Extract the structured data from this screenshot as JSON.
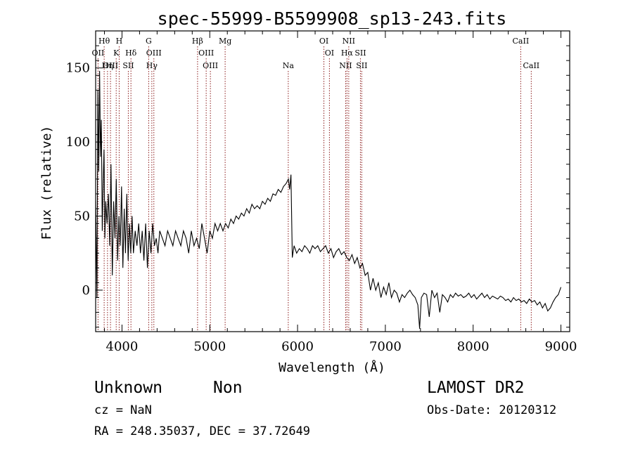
{
  "chart_data": {
    "type": "line",
    "title": "spec-55999-B5599908_sp13-243.fits",
    "xlabel": "Wavelength (Å)",
    "ylabel": "Flux (relative)",
    "xlim": [
      3700,
      9100
    ],
    "ylim": [
      -28,
      175
    ],
    "x_ticks": [
      4000,
      5000,
      6000,
      7000,
      8000,
      9000
    ],
    "y_ticks": [
      0,
      50,
      100,
      150
    ],
    "grid": false,
    "line_color": "#000000",
    "marker_color": "#8b1a1a",
    "series": [
      {
        "x": [
          3700,
          3715,
          3725,
          3735,
          3745,
          3755,
          3765,
          3775,
          3785,
          3795,
          3805,
          3815,
          3830,
          3845,
          3860,
          3875,
          3890,
          3905,
          3920,
          3935,
          3950,
          3965,
          3980,
          3995,
          4010,
          4025,
          4040,
          4055,
          4070,
          4085,
          4100,
          4115,
          4130,
          4150,
          4170,
          4190,
          4210,
          4230,
          4250,
          4270,
          4290,
          4310,
          4330,
          4350,
          4370,
          4390,
          4410,
          4430,
          4460,
          4490,
          4520,
          4550,
          4580,
          4610,
          4640,
          4670,
          4700,
          4730,
          4760,
          4790,
          4820,
          4850,
          4880,
          4910,
          4940,
          4970,
          5000,
          5030,
          5060,
          5090,
          5120,
          5150,
          5180,
          5210,
          5240,
          5270,
          5300,
          5330,
          5360,
          5390,
          5420,
          5450,
          5480,
          5510,
          5540,
          5570,
          5600,
          5630,
          5660,
          5690,
          5720,
          5750,
          5780,
          5810,
          5840,
          5870,
          5895,
          5910,
          5925,
          5940,
          5960,
          5990,
          6020,
          6050,
          6080,
          6110,
          6140,
          6170,
          6200,
          6230,
          6260,
          6290,
          6320,
          6350,
          6380,
          6410,
          6440,
          6470,
          6500,
          6530,
          6560,
          6590,
          6620,
          6650,
          6680,
          6710,
          6740,
          6770,
          6800,
          6830,
          6860,
          6890,
          6920,
          6950,
          6980,
          7010,
          7040,
          7070,
          7100,
          7130,
          7160,
          7190,
          7220,
          7250,
          7280,
          7310,
          7340,
          7370,
          7390,
          7410,
          7440,
          7470,
          7500,
          7530,
          7560,
          7590,
          7620,
          7650,
          7680,
          7710,
          7740,
          7770,
          7800,
          7830,
          7860,
          7890,
          7920,
          7950,
          7980,
          8010,
          8040,
          8070,
          8100,
          8130,
          8160,
          8190,
          8220,
          8250,
          8280,
          8310,
          8340,
          8370,
          8400,
          8430,
          8460,
          8490,
          8520,
          8550,
          8580,
          8610,
          8640,
          8670,
          8700,
          8730,
          8760,
          8790,
          8820,
          8850,
          8880,
          8910,
          8940,
          8970,
          9000
        ],
        "y": [
          60,
          -5,
          135,
          80,
          148,
          90,
          115,
          40,
          70,
          95,
          35,
          60,
          45,
          65,
          30,
          85,
          10,
          60,
          35,
          75,
          20,
          50,
          30,
          70,
          15,
          55,
          25,
          65,
          20,
          45,
          25,
          50,
          25,
          40,
          30,
          45,
          25,
          40,
          20,
          45,
          15,
          40,
          25,
          45,
          30,
          35,
          25,
          40,
          35,
          30,
          40,
          35,
          30,
          40,
          35,
          30,
          40,
          35,
          25,
          40,
          30,
          35,
          28,
          45,
          35,
          25,
          40,
          35,
          45,
          40,
          45,
          40,
          45,
          42,
          48,
          45,
          50,
          48,
          52,
          50,
          55,
          52,
          58,
          55,
          57,
          55,
          60,
          58,
          62,
          60,
          65,
          64,
          68,
          66,
          70,
          72,
          75,
          68,
          78,
          22,
          30,
          25,
          28,
          26,
          30,
          28,
          25,
          30,
          28,
          30,
          26,
          28,
          30,
          25,
          28,
          22,
          26,
          28,
          24,
          26,
          22,
          20,
          24,
          18,
          22,
          15,
          18,
          10,
          12,
          0,
          8,
          0,
          5,
          -5,
          2,
          -3,
          5,
          -5,
          0,
          -2,
          -8,
          -3,
          -5,
          -2,
          0,
          -3,
          -5,
          -10,
          -26,
          -5,
          -2,
          -3,
          -18,
          0,
          -5,
          -2,
          -15,
          -3,
          -5,
          -8,
          -3,
          -5,
          -2,
          -4,
          -3,
          -5,
          -4,
          -2,
          -5,
          -3,
          -6,
          -4,
          -2,
          -5,
          -3,
          -6,
          -4,
          -5,
          -6,
          -4,
          -5,
          -7,
          -6,
          -8,
          -5,
          -7,
          -6,
          -8,
          -7,
          -9,
          -6,
          -8,
          -7,
          -10,
          -8,
          -12,
          -9,
          -14,
          -12,
          -8,
          -5,
          -3,
          2
        ]
      }
    ],
    "line_markers": [
      {
        "label": "Hθ",
        "x": 3797,
        "row": 1,
        "dotted": true
      },
      {
        "label": "OII",
        "x": 3727,
        "row": 2,
        "dotted": true
      },
      {
        "label": "OIII",
        "x": 3869,
        "row": 3,
        "dotted": true
      },
      {
        "label": "Hη",
        "x": 3835,
        "row": 3,
        "dotted": true
      },
      {
        "label": "H",
        "x": 3968,
        "row": 1,
        "dotted": true
      },
      {
        "label": "K",
        "x": 3934,
        "row": 2,
        "dotted": true
      },
      {
        "label": "Hδ",
        "x": 4102,
        "row": 2,
        "dotted": true
      },
      {
        "label": "SII",
        "x": 4072,
        "row": 3,
        "dotted": true
      },
      {
        "label": "G",
        "x": 4304,
        "row": 1,
        "dotted": true
      },
      {
        "label": "OIII",
        "x": 4363,
        "row": 2,
        "dotted": true
      },
      {
        "label": "Hγ",
        "x": 4340,
        "row": 3,
        "dotted": true
      },
      {
        "label": "Hβ",
        "x": 4861,
        "row": 1,
        "dotted": true
      },
      {
        "label": "OIII",
        "x": 4959,
        "row": 2,
        "dotted": true
      },
      {
        "label": "OIII",
        "x": 5007,
        "row": 3,
        "dotted": true
      },
      {
        "label": "Mg",
        "x": 5175,
        "row": 1,
        "dotted": true
      },
      {
        "label": "Na",
        "x": 5894,
        "row": 3,
        "dotted": true
      },
      {
        "label": "OI",
        "x": 6300,
        "row": 1,
        "dotted": true
      },
      {
        "label": "OI",
        "x": 6363,
        "row": 2,
        "dotted": true
      },
      {
        "label": "NII",
        "x": 6583,
        "row": 1,
        "dotted": true
      },
      {
        "label": "Hα",
        "x": 6563,
        "row": 2,
        "dotted": true
      },
      {
        "label": "SII",
        "x": 6716,
        "row": 2,
        "dotted": true
      },
      {
        "label": "NII",
        "x": 6548,
        "row": 3,
        "dotted": true
      },
      {
        "label": "SII",
        "x": 6731,
        "row": 3,
        "dotted": true
      },
      {
        "label": "CaII",
        "x": 8542,
        "row": 1,
        "dotted": true
      },
      {
        "label": "CaII",
        "x": 8662,
        "row": 3,
        "dotted": true
      }
    ]
  },
  "info": {
    "object_class": "Unknown",
    "subclass": "Non",
    "cz": "cz = NaN",
    "radec": "RA = 248.35037, DEC =  37.72649",
    "survey": "LAMOST DR2",
    "obs_date": "Obs-Date: 20120312"
  }
}
